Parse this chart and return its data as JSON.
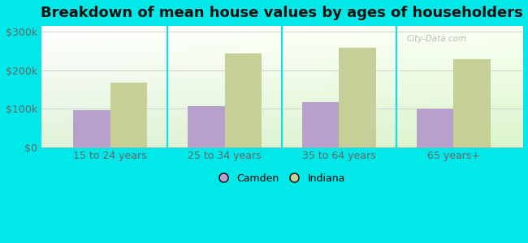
{
  "categories": [
    "15 to 24 years",
    "25 to 34 years",
    "35 to 64 years",
    "65 years+"
  ],
  "camden_values": [
    95000,
    107000,
    118000,
    100000
  ],
  "indiana_values": [
    168000,
    243000,
    258000,
    228000
  ],
  "camden_color": "#b8a0cc",
  "indiana_color": "#c5cf96",
  "title": "Breakdown of mean house values by ages of householders",
  "title_fontsize": 13,
  "ylabel_ticks": [
    "$0",
    "$100k",
    "$200k",
    "$300k"
  ],
  "ytick_values": [
    0,
    100000,
    200000,
    300000
  ],
  "ylim": [
    0,
    315000
  ],
  "background_color": "#00e8e8",
  "bar_width": 0.32,
  "legend_camden": "Camden",
  "legend_indiana": "Indiana",
  "watermark": "City-Data.com"
}
